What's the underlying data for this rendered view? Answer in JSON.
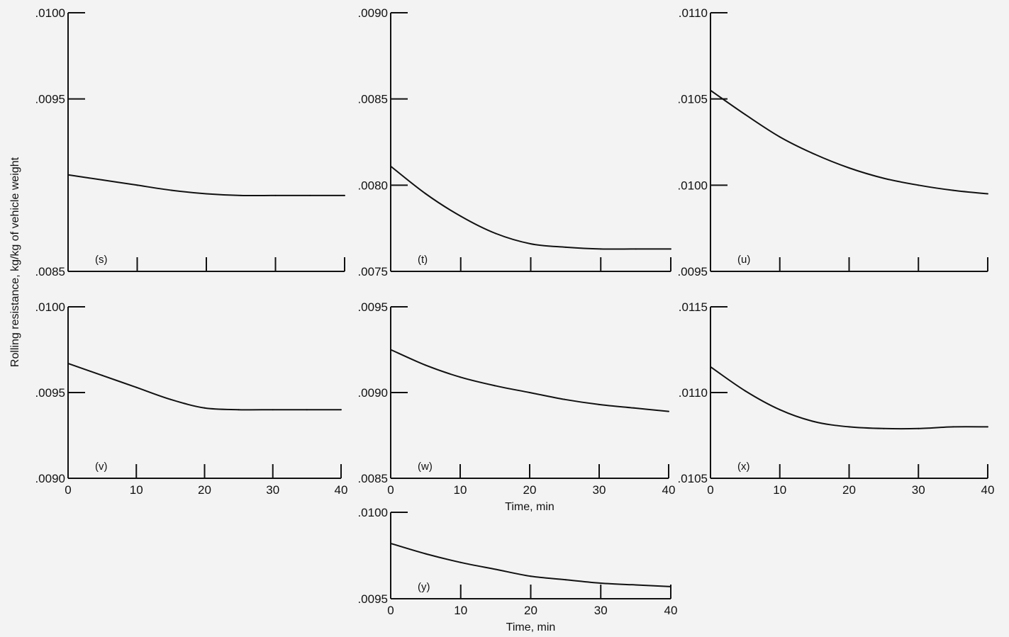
{
  "figure": {
    "ylabel": "Rolling resistance, kg/kg of vehicle weight",
    "xlabel": "Time, min"
  },
  "chart_data": [
    {
      "type": "line",
      "label": "(s)",
      "x": [
        0,
        5,
        10,
        15,
        20,
        25,
        30,
        35,
        40
      ],
      "values": [
        0.00906,
        0.00903,
        0.009,
        0.00897,
        0.00895,
        0.00894,
        0.00894,
        0.00894,
        0.00894
      ],
      "ylim": [
        0.0085,
        0.01
      ],
      "yticks": [
        ".0085",
        ".0095",
        ".0100"
      ],
      "xlim": [
        0,
        40
      ],
      "xticks": [],
      "xlabel": ""
    },
    {
      "type": "line",
      "label": "(t)",
      "x": [
        0,
        5,
        10,
        15,
        20,
        25,
        30,
        35,
        40
      ],
      "values": [
        0.00811,
        0.00795,
        0.00782,
        0.00772,
        0.00766,
        0.00764,
        0.00763,
        0.00763,
        0.00763
      ],
      "ylim": [
        0.0075,
        0.009
      ],
      "yticks": [
        ".0075",
        ".0080",
        ".0085",
        ".0090"
      ],
      "xlim": [
        0,
        40
      ],
      "xticks": [],
      "xlabel": ""
    },
    {
      "type": "line",
      "label": "(u)",
      "x": [
        0,
        5,
        10,
        15,
        20,
        25,
        30,
        35,
        40
      ],
      "values": [
        0.01055,
        0.01041,
        0.01028,
        0.01018,
        0.0101,
        0.01004,
        0.01,
        0.00997,
        0.00995
      ],
      "ylim": [
        0.0095,
        0.011
      ],
      "yticks": [
        ".0095",
        ".0100",
        ".0105",
        ".0110"
      ],
      "xlim": [
        0,
        40
      ],
      "xticks": [],
      "xlabel": ""
    },
    {
      "type": "line",
      "label": "(v)",
      "x": [
        0,
        5,
        10,
        15,
        20,
        25,
        30,
        35,
        40
      ],
      "values": [
        0.00967,
        0.0096,
        0.00953,
        0.00946,
        0.00941,
        0.0094,
        0.0094,
        0.0094,
        0.0094
      ],
      "ylim": [
        0.009,
        0.01
      ],
      "yticks": [
        ".0090",
        ".0095",
        ".0100"
      ],
      "xlim": [
        0,
        40
      ],
      "xticks": [
        "0",
        "10",
        "20",
        "30",
        "40"
      ],
      "xlabel": ""
    },
    {
      "type": "line",
      "label": "(w)",
      "x": [
        0,
        5,
        10,
        15,
        20,
        25,
        30,
        35,
        40
      ],
      "values": [
        0.00925,
        0.00916,
        0.00909,
        0.00904,
        0.009,
        0.00896,
        0.00893,
        0.00891,
        0.00889
      ],
      "ylim": [
        0.0085,
        0.0095
      ],
      "yticks": [
        ".0085",
        ".0090",
        ".0095"
      ],
      "xlim": [
        0,
        40
      ],
      "xticks": [
        "0",
        "10",
        "20",
        "30",
        "40"
      ],
      "xlabel": "Time, min"
    },
    {
      "type": "line",
      "label": "(x)",
      "x": [
        0,
        5,
        10,
        15,
        20,
        25,
        30,
        35,
        40
      ],
      "values": [
        0.01115,
        0.01101,
        0.0109,
        0.01083,
        0.0108,
        0.01079,
        0.01079,
        0.0108,
        0.0108
      ],
      "ylim": [
        0.0105,
        0.0115
      ],
      "yticks": [
        ".0105",
        ".0110",
        ".0115"
      ],
      "xlim": [
        0,
        40
      ],
      "xticks": [
        "0",
        "10",
        "20",
        "30",
        "40"
      ],
      "xlabel": ""
    },
    {
      "type": "line",
      "label": "(y)",
      "x": [
        0,
        5,
        10,
        15,
        20,
        25,
        30,
        35,
        40
      ],
      "values": [
        0.00982,
        0.00976,
        0.00971,
        0.00967,
        0.00963,
        0.00961,
        0.00959,
        0.00958,
        0.00957
      ],
      "ylim": [
        0.0095,
        0.01
      ],
      "yticks": [
        ".0095",
        ".0100"
      ],
      "xlim": [
        0,
        40
      ],
      "xticks": [
        "0",
        "10",
        "20",
        "30",
        "40"
      ],
      "xlabel": "Time, min"
    }
  ]
}
